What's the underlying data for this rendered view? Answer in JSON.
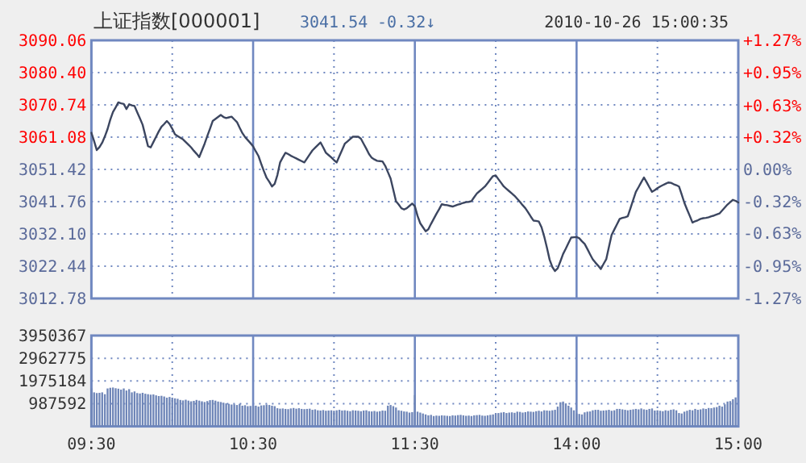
{
  "chart_data": [
    {
      "type": "line",
      "title": "上证指数[000001]",
      "annotations": [
        "3041.54",
        "-0.32↓",
        "2010-10-26 15:00:35"
      ],
      "categories": [
        null,
        null,
        null,
        null,
        null,
        null,
        null,
        null,
        null,
        null,
        null,
        null,
        null,
        null,
        null,
        null,
        null,
        null,
        null,
        null,
        null,
        null,
        null,
        null,
        null,
        null,
        null,
        null,
        null,
        null,
        null,
        null,
        null,
        null,
        null,
        null,
        null,
        null,
        null,
        null,
        null,
        null,
        null,
        null,
        null,
        null,
        null,
        null,
        null,
        null,
        null,
        null,
        null,
        null,
        null,
        null,
        null,
        null,
        null,
        null,
        null,
        null,
        null,
        null,
        null,
        null,
        null,
        null,
        null,
        null,
        null,
        null,
        null,
        null,
        null,
        null,
        null,
        null,
        null,
        null,
        null,
        null,
        null,
        null,
        null,
        null,
        null,
        null,
        null,
        null,
        null,
        null,
        null,
        null,
        null,
        null,
        null,
        null,
        null,
        null,
        null,
        null,
        null,
        null,
        null,
        null,
        null,
        null,
        null,
        null,
        null,
        null,
        null,
        null,
        null,
        null,
        null,
        null,
        null,
        null,
        null,
        null,
        null,
        null,
        null,
        null,
        null,
        null,
        null,
        null,
        null,
        null,
        null,
        null,
        null,
        null,
        null,
        null,
        null,
        null,
        null,
        null,
        null,
        null,
        null,
        null,
        null,
        null,
        null,
        null,
        null,
        null,
        null,
        null,
        null,
        null,
        null,
        null,
        null,
        null,
        null,
        null,
        null,
        null,
        null,
        null,
        null,
        null,
        null,
        null,
        null,
        null,
        null,
        null,
        null,
        null,
        null,
        null,
        null,
        null,
        null,
        null,
        null,
        null,
        null,
        null,
        null,
        null,
        null,
        null,
        null,
        null,
        null,
        null,
        null,
        null,
        null,
        null,
        null,
        null,
        null,
        null,
        null,
        null,
        null,
        null,
        null,
        null,
        null,
        null,
        null,
        null,
        null,
        null,
        null,
        null,
        null,
        null,
        null,
        null,
        null,
        null,
        null,
        null,
        null,
        null,
        null,
        null,
        null,
        null,
        null,
        null,
        null,
        null,
        null,
        null,
        null,
        null,
        null,
        null,
        null
      ],
      "ylim": [
        3012.78,
        3090.06
      ],
      "yticks": [
        3012.78,
        3022.44,
        {
          "value": 3032.1,
          "label": "3032.10"
        },
        3041.76,
        3051.42,
        3061.08,
        3070.74,
        {
          "value": 3080.4,
          "label": "3080.40"
        },
        3090.06
      ],
      "y2lim": [
        -1.27,
        1.27
      ],
      "y2ticks": [
        {
          "value": -1.27,
          "label": "-1.27%"
        },
        {
          "value": -0.95,
          "label": "-0.95%"
        },
        {
          "value": -0.63,
          "label": "-0.63%"
        },
        {
          "value": -0.32,
          "label": "-0.32%"
        },
        {
          "value": 0,
          "label": "0.00%"
        },
        {
          "value": 0.32,
          "label": "+0.32%"
        },
        {
          "value": 0.63,
          "label": "+0.63%"
        },
        {
          "value": 0.95,
          "label": "+0.95%"
        },
        {
          "value": 1.27,
          "label": "+1.27%"
        }
      ],
      "tick_labels": "y",
      "grid": true,
      "series": [
        {
          "color": "#3c4660",
          "values": [
            3062.4,
            3059.9,
            3057.2,
            3058.1,
            3059.4,
            3061.3,
            3063.5,
            3066.3,
            3068.6,
            3070.0,
            3071.5,
            3071.2,
            3071.0,
            3069.5,
            3070.9,
            3070.6,
            3070.4,
            3068.5,
            3066.7,
            3064.8,
            3061.6,
            3058.4,
            3058.0,
            3059.6,
            3061.2,
            3062.8,
            3064.2,
            3065.0,
            3065.9,
            3065.0,
            3063.6,
            3061.9,
            3061.4,
            3060.9,
            3060.4,
            3059.6,
            3058.8,
            3058.0,
            3057.0,
            3056.1,
            3055.1,
            3057.1,
            3059.1,
            3061.4,
            3063.6,
            3065.9,
            3066.5,
            3067.1,
            3067.7,
            3067.1,
            3066.8,
            3067.0,
            3067.2,
            3066.4,
            3065.6,
            3063.9,
            3062.3,
            3061.1,
            3060.2,
            3059.3,
            3058.3,
            3056.8,
            3055.4,
            3053.1,
            3050.9,
            3048.9,
            3047.7,
            3046.3,
            3047.1,
            3049.7,
            3053.5,
            3055.0,
            3056.4,
            3056.0,
            3055.5,
            3055.1,
            3054.7,
            3054.3,
            3053.9,
            3053.5,
            3054.7,
            3055.9,
            3057.1,
            3057.9,
            3058.7,
            3059.5,
            3058.0,
            3056.4,
            3055.7,
            3055.0,
            3054.2,
            3053.5,
            3055.4,
            3057.2,
            3059.1,
            3059.8,
            3060.5,
            3061.2,
            3061.2,
            3061.2,
            3060.6,
            3059.1,
            3057.6,
            3056.0,
            3054.9,
            3054.4,
            3054.0,
            3053.9,
            3053.8,
            3052.5,
            3050.6,
            3048.7,
            3045.3,
            3041.9,
            3040.9,
            3039.8,
            3039.4,
            3039.8,
            3040.5,
            3041.2,
            3040.4,
            3037.5,
            3035.3,
            3034.1,
            3032.9,
            3033.5,
            3035.1,
            3036.6,
            3038.1,
            3039.5,
            3041.0,
            3040.8,
            3040.7,
            3040.5,
            3040.3,
            3040.6,
            3040.9,
            3041.1,
            3041.4,
            3041.6,
            3041.7,
            3041.9,
            3043.1,
            3044.2,
            3044.9,
            3045.6,
            3046.3,
            3047.3,
            3048.4,
            3049.4,
            3049.6,
            3048.5,
            3047.4,
            3046.3,
            3045.6,
            3044.9,
            3044.2,
            3043.5,
            3042.6,
            3041.7,
            3040.7,
            3039.8,
            3038.6,
            3037.3,
            3036.1,
            3036.0,
            3035.8,
            3034.1,
            3031.3,
            3028.0,
            3024.4,
            3022.2,
            3021.0,
            3021.8,
            3023.9,
            3026.1,
            3027.7,
            3029.4,
            3031.0,
            3031.1,
            3031.2,
            3030.8,
            3029.9,
            3029.1,
            3027.6,
            3026.0,
            3024.5,
            3023.5,
            3022.6,
            3021.6,
            3023.1,
            3024.5,
            3028.2,
            3031.8,
            3033.4,
            3035.0,
            3036.6,
            3036.9,
            3037.1,
            3037.4,
            3039.8,
            3042.3,
            3044.7,
            3046.1,
            3047.6,
            3049.0,
            3047.6,
            3046.1,
            3044.7,
            3045.2,
            3045.8,
            3046.3,
            3046.7,
            3047.1,
            3047.5,
            3047.4,
            3047.0,
            3046.7,
            3046.3,
            3043.9,
            3041.4,
            3039.4,
            3037.5,
            3035.5,
            3035.9,
            3036.2,
            3036.6,
            3036.8,
            3036.9,
            3037.1,
            3037.4,
            3037.6,
            3037.9,
            3038.2,
            3039.1,
            3040.0,
            3040.9,
            3041.6,
            3042.3,
            3042.0,
            3041.5
          ]
        }
      ]
    },
    {
      "type": "bar",
      "categories": [
        "09:30",
        null,
        null,
        null,
        null,
        null,
        null,
        null,
        null,
        null,
        null,
        null,
        null,
        null,
        null,
        null,
        null,
        null,
        null,
        null,
        null,
        null,
        null,
        null,
        null,
        null,
        null,
        null,
        null,
        null,
        null,
        null,
        null,
        null,
        null,
        null,
        null,
        null,
        null,
        null,
        null,
        null,
        null,
        null,
        null,
        null,
        null,
        null,
        null,
        null,
        null,
        null,
        null,
        null,
        null,
        null,
        null,
        null,
        null,
        null,
        "10:30",
        null,
        null,
        null,
        null,
        null,
        null,
        null,
        null,
        null,
        null,
        null,
        null,
        null,
        null,
        null,
        null,
        null,
        null,
        null,
        null,
        null,
        null,
        null,
        null,
        null,
        null,
        null,
        null,
        null,
        null,
        null,
        null,
        null,
        null,
        null,
        null,
        null,
        null,
        null,
        null,
        null,
        null,
        null,
        null,
        null,
        null,
        null,
        null,
        null,
        null,
        null,
        null,
        null,
        null,
        null,
        null,
        null,
        null,
        null,
        "11:30",
        null,
        null,
        null,
        null,
        null,
        null,
        null,
        null,
        null,
        null,
        null,
        null,
        null,
        null,
        null,
        null,
        null,
        null,
        null,
        null,
        null,
        null,
        null,
        null,
        null,
        null,
        null,
        null,
        null,
        null,
        null,
        null,
        null,
        null,
        null,
        null,
        null,
        null,
        null,
        null,
        null,
        null,
        null,
        null,
        null,
        null,
        null,
        null,
        null,
        null,
        null,
        null,
        null,
        null,
        null,
        null,
        null,
        null,
        null,
        "14:00",
        null,
        null,
        null,
        null,
        null,
        null,
        null,
        null,
        null,
        null,
        null,
        null,
        null,
        null,
        null,
        null,
        null,
        null,
        null,
        null,
        null,
        null,
        null,
        null,
        null,
        null,
        null,
        null,
        null,
        null,
        null,
        null,
        null,
        null,
        null,
        null,
        null,
        null,
        null,
        null,
        null,
        null,
        null,
        null,
        null,
        null,
        null,
        null,
        null,
        null,
        null,
        null,
        null,
        null,
        null,
        null,
        null,
        null,
        null,
        "15:00"
      ],
      "ylim": [
        0,
        3950367
      ],
      "yticks": [
        987592,
        1975184,
        2962775,
        3950367
      ],
      "grid": true,
      "series": [
        {
          "color": "#6f86b8",
          "values": [
            1650000,
            1480000,
            1450000,
            1460000,
            1480000,
            1400000,
            1650000,
            1680000,
            1690000,
            1660000,
            1640000,
            1600000,
            1650000,
            1560000,
            1620000,
            1480000,
            1520000,
            1450000,
            1430000,
            1460000,
            1420000,
            1400000,
            1380000,
            1390000,
            1350000,
            1320000,
            1330000,
            1300000,
            1250000,
            1280000,
            1250000,
            1220000,
            1200000,
            1150000,
            1130000,
            1160000,
            1120000,
            1090000,
            1110000,
            1150000,
            1120000,
            1090000,
            1060000,
            1100000,
            1140000,
            1150000,
            1120000,
            1080000,
            1060000,
            1030000,
            1000000,
            980000,
            950000,
            960000,
            930000,
            980000,
            900000,
            920000,
            880000,
            890000,
            880000,
            900000,
            860000,
            910000,
            920000,
            950000,
            930000,
            900000,
            880000,
            790000,
            770000,
            780000,
            760000,
            750000,
            780000,
            800000,
            770000,
            790000,
            760000,
            750000,
            760000,
            770000,
            720000,
            740000,
            700000,
            690000,
            710000,
            680000,
            690000,
            700000,
            680000,
            700000,
            720000,
            690000,
            700000,
            680000,
            660000,
            700000,
            690000,
            680000,
            660000,
            690000,
            700000,
            660000,
            650000,
            670000,
            640000,
            660000,
            690000,
            680000,
            900000,
            930000,
            880000,
            820000,
            700000,
            680000,
            650000,
            640000,
            600000,
            620000,
            1360000,
            640000,
            600000,
            560000,
            520000,
            480000,
            500000,
            450000,
            470000,
            460000,
            480000,
            470000,
            460000,
            450000,
            480000,
            470000,
            490000,
            500000,
            480000,
            460000,
            470000,
            450000,
            480000,
            490000,
            500000,
            470000,
            460000,
            480000,
            500000,
            520000,
            560000,
            580000,
            600000,
            620000,
            580000,
            600000,
            610000,
            590000,
            640000,
            630000,
            600000,
            620000,
            650000,
            640000,
            630000,
            660000,
            680000,
            650000,
            700000,
            690000,
            680000,
            700000,
            720000,
            860000,
            1050000,
            1080000,
            1000000,
            900000,
            820000,
            700000,
            560000,
            540000,
            520000,
            610000,
            640000,
            650000,
            700000,
            720000,
            720000,
            680000,
            690000,
            700000,
            720000,
            680000,
            700000,
            760000,
            760000,
            740000,
            720000,
            700000,
            720000,
            740000,
            760000,
            740000,
            780000,
            740000,
            720000,
            760000,
            780000,
            690000,
            700000,
            680000,
            660000,
            700000,
            680000,
            720000,
            740000,
            700000,
            580000,
            560000,
            640000,
            680000,
            720000,
            700000,
            760000,
            720000,
            740000,
            780000,
            760000,
            800000,
            790000,
            820000,
            840000,
            900000,
            860000,
            960000,
            1080000,
            1100000,
            1180000,
            1260000,
            null
          ]
        }
      ]
    }
  ]
}
